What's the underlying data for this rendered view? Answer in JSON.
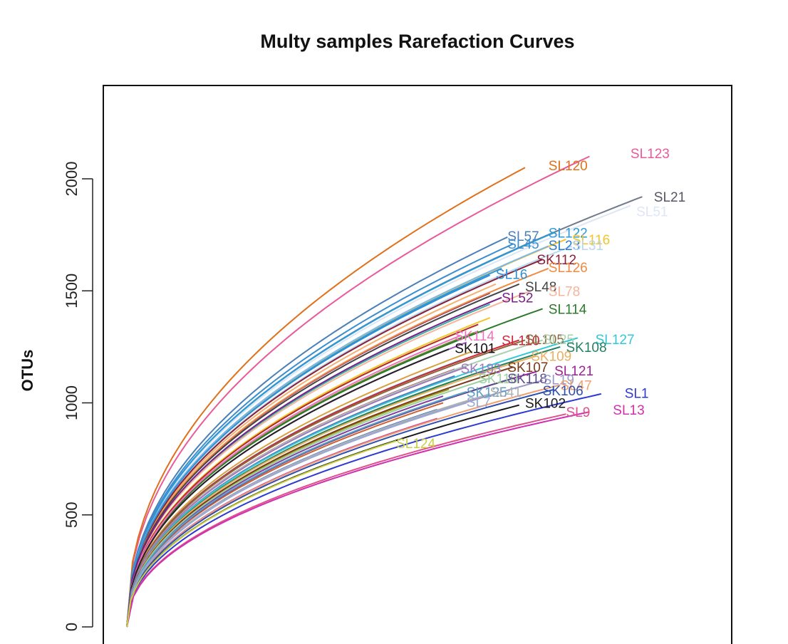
{
  "chart_data": {
    "type": "line",
    "title": "Multy samples Rarefaction Curves",
    "xlabel": "",
    "ylabel": "OTUs",
    "ylim": [
      0,
      2350
    ],
    "y_ticks": [
      0,
      500,
      1000,
      1500,
      2000
    ],
    "y_tick_labels": [
      "0",
      "500",
      "1000",
      "1500",
      "2000"
    ],
    "xlim": [
      0,
      100
    ],
    "grid": false,
    "legend": "inline labels at curve ends",
    "series": [
      {
        "name": "SL123",
        "color": "#e85a9a",
        "end": [
          79,
          2100
        ]
      },
      {
        "name": "SL120",
        "color": "#e0701a",
        "end": [
          68,
          2050
        ]
      },
      {
        "name": "SL21",
        "color": "#707a8c",
        "end": [
          88,
          1920
        ]
      },
      {
        "name": "SL51",
        "color": "#dde6f5",
        "end": [
          86,
          1880
        ]
      },
      {
        "name": "SL57",
        "color": "#4a7fb8",
        "end": [
          65,
          1740
        ]
      },
      {
        "name": "SL122",
        "color": "#2a9ad8",
        "end": [
          73,
          1760
        ]
      },
      {
        "name": "SL116",
        "color": "#f2c42a",
        "end": [
          75,
          1730
        ]
      },
      {
        "name": "SL45",
        "color": "#3a8ed0",
        "end": [
          66,
          1710
        ]
      },
      {
        "name": "SL23",
        "color": "#7ab6e8",
        "end": [
          72,
          1700
        ]
      },
      {
        "name": "SL31",
        "color": "#b8d8ee",
        "end": [
          76,
          1700
        ]
      },
      {
        "name": "SK112",
        "color": "#8b1f3a",
        "end": [
          71,
          1640
        ]
      },
      {
        "name": "SL126",
        "color": "#f08a40",
        "end": [
          72,
          1600
        ]
      },
      {
        "name": "SL16",
        "color": "#2f8fd6",
        "end": [
          62,
          1570
        ]
      },
      {
        "name": "SL48",
        "color": "#444444",
        "end": [
          67,
          1530
        ]
      },
      {
        "name": "SL78",
        "color": "#f5b59a",
        "end": [
          69,
          1500
        ]
      },
      {
        "name": "SL52",
        "color": "#7a1f8a",
        "end": [
          64,
          1470
        ]
      },
      {
        "name": "SL114",
        "color": "#2a7a2a",
        "end": [
          71,
          1420
        ]
      },
      {
        "name": "SK114",
        "color": "#f070c0",
        "end": [
          57,
          1300
        ]
      },
      {
        "name": "SL110",
        "color": "#d0283a",
        "end": [
          67,
          1280
        ]
      },
      {
        "name": "SL105",
        "color": "#8a6a3a",
        "end": [
          68,
          1280
        ]
      },
      {
        "name": "SL25",
        "color": "#aad0b0",
        "end": [
          71,
          1280
        ]
      },
      {
        "name": "SL127",
        "color": "#30c8d8",
        "end": [
          77,
          1290
        ]
      },
      {
        "name": "SK101",
        "color": "#222222",
        "end": [
          55,
          1240
        ]
      },
      {
        "name": "SK108",
        "color": "#238060",
        "end": [
          74,
          1250
        ]
      },
      {
        "name": "SK109",
        "color": "#e8b060",
        "end": [
          70,
          1210
        ]
      },
      {
        "name": "SK183",
        "color": "#a078c0",
        "end": [
          58,
          1160
        ]
      },
      {
        "name": "SK107",
        "color": "#7a3a1a",
        "end": [
          66,
          1160
        ]
      },
      {
        "name": "SL121",
        "color": "#a0209a",
        "end": [
          70,
          1140
        ]
      },
      {
        "name": "SK110",
        "color": "#9ad0a0",
        "end": [
          62,
          1110
        ]
      },
      {
        "name": "SK118",
        "color": "#5a4a8a",
        "end": [
          66,
          1110
        ]
      },
      {
        "name": "SL19",
        "color": "#9a9ac8",
        "end": [
          71,
          1100
        ]
      },
      {
        "name": "SL47",
        "color": "#f0a070",
        "end": [
          74,
          1080
        ]
      },
      {
        "name": "SK125",
        "color": "#5aa0c8",
        "end": [
          58,
          1050
        ]
      },
      {
        "name": "SL41",
        "color": "#b0b0b0",
        "end": [
          62,
          1040
        ]
      },
      {
        "name": "SK106",
        "color": "#3050b0",
        "end": [
          73,
          1060
        ]
      },
      {
        "name": "SL1",
        "color": "#2c3ad0",
        "end": [
          81,
          1040
        ]
      },
      {
        "name": "SL7",
        "color": "#9aa8d8",
        "end": [
          58,
          1000
        ]
      },
      {
        "name": "SK102",
        "color": "#1a1a1a",
        "end": [
          67,
          990
        ]
      },
      {
        "name": "SL9",
        "color": "#e0508a",
        "end": [
          75,
          950
        ]
      },
      {
        "name": "SL13",
        "color": "#d030b0",
        "end": [
          79,
          960
        ]
      },
      {
        "name": "SL124",
        "color": "#c8d040",
        "end": [
          46,
          830
        ]
      }
    ],
    "label_text": [
      {
        "text": "SL123",
        "color": "#e85a9a",
        "at": [
          86,
          2115
        ]
      },
      {
        "text": "SL120",
        "color": "#e0701a",
        "at": [
          72,
          2060
        ]
      },
      {
        "text": "SL21",
        "color": "#555566",
        "at": [
          90,
          1920
        ]
      },
      {
        "text": "SL51",
        "color": "#dde6f5",
        "at": [
          87,
          1855
        ]
      },
      {
        "text": "SL57",
        "color": "#4a7fb8",
        "at": [
          65,
          1745
        ]
      },
      {
        "text": "SL122",
        "color": "#2a9ad8",
        "at": [
          72,
          1760
        ]
      },
      {
        "text": "SL116",
        "color": "#f2c42a",
        "at": [
          76,
          1730
        ]
      },
      {
        "text": "SL45",
        "color": "#3a8ed0",
        "at": [
          65,
          1710
        ]
      },
      {
        "text": "SL23",
        "color": "#2a7ad0",
        "at": [
          72,
          1705
        ]
      },
      {
        "text": "SL31",
        "color": "#b8d8ee",
        "at": [
          76,
          1705
        ]
      },
      {
        "text": "SK112",
        "color": "#8b1f3a",
        "at": [
          70,
          1640
        ]
      },
      {
        "text": "SL126",
        "color": "#f08a40",
        "at": [
          72,
          1605
        ]
      },
      {
        "text": "SL16",
        "color": "#2f8fd6",
        "at": [
          63,
          1575
        ]
      },
      {
        "text": "SL48",
        "color": "#444444",
        "at": [
          68,
          1520
        ]
      },
      {
        "text": "SL78",
        "color": "#f5b59a",
        "at": [
          72,
          1500
        ]
      },
      {
        "text": "SL52",
        "color": "#7a1f8a",
        "at": [
          64,
          1470
        ]
      },
      {
        "text": "SL114",
        "color": "#2a7a2a",
        "at": [
          72,
          1420
        ]
      },
      {
        "text": "SK114",
        "color": "#f070c0",
        "at": [
          56,
          1300
        ]
      },
      {
        "text": "SL110",
        "color": "#d0283a",
        "at": [
          64,
          1280
        ]
      },
      {
        "text": "SL105",
        "color": "#8a6a3a",
        "at": [
          68,
          1285
        ]
      },
      {
        "text": "SL25",
        "color": "#aad0b0",
        "at": [
          71,
          1285
        ]
      },
      {
        "text": "SL127",
        "color": "#30c8d8",
        "at": [
          80,
          1285
        ]
      },
      {
        "text": "SK101",
        "color": "#111111",
        "at": [
          56,
          1245
        ]
      },
      {
        "text": "SK108",
        "color": "#238060",
        "at": [
          75,
          1250
        ]
      },
      {
        "text": "SK109",
        "color": "#e8b060",
        "at": [
          69,
          1210
        ]
      },
      {
        "text": "SK183",
        "color": "#a078c0",
        "at": [
          57,
          1155
        ]
      },
      {
        "text": "SK107",
        "color": "#7a3a1a",
        "at": [
          65,
          1160
        ]
      },
      {
        "text": "SL121",
        "color": "#a0209a",
        "at": [
          73,
          1145
        ]
      },
      {
        "text": "SK110",
        "color": "#9ad0a0",
        "at": [
          60,
          1110
        ]
      },
      {
        "text": "SK118",
        "color": "#5a4a8a",
        "at": [
          65,
          1110
        ]
      },
      {
        "text": "SL19",
        "color": "#9a9ac8",
        "at": [
          71,
          1105
        ]
      },
      {
        "text": "SL47",
        "color": "#f0a070",
        "at": [
          74,
          1080
        ]
      },
      {
        "text": "SK125",
        "color": "#5aa0c8",
        "at": [
          58,
          1050
        ]
      },
      {
        "text": "SL41",
        "color": "#b0b0b0",
        "at": [
          62,
          1050
        ]
      },
      {
        "text": "SK106",
        "color": "#3050b0",
        "at": [
          71,
          1055
        ]
      },
      {
        "text": "SL1",
        "color": "#2c3ad0",
        "at": [
          85,
          1045
        ]
      },
      {
        "text": "SL7",
        "color": "#9aa8d8",
        "at": [
          58,
          1005
        ]
      },
      {
        "text": "SK102",
        "color": "#1a1a1a",
        "at": [
          68,
          1000
        ]
      },
      {
        "text": "SL13",
        "color": "#d030b0",
        "at": [
          83,
          970
        ]
      },
      {
        "text": "SL9",
        "color": "#e0508a",
        "at": [
          75,
          960
        ]
      },
      {
        "text": "SL124",
        "color": "#c8d040",
        "at": [
          46,
          820
        ]
      }
    ],
    "unlabeled_series": [
      {
        "color": "#3a8ed0",
        "end": [
          66,
          1680
        ]
      },
      {
        "color": "#e0508a",
        "end": [
          65,
          1620
        ]
      },
      {
        "color": "#2a9ad8",
        "end": [
          64,
          1600
        ]
      },
      {
        "color": "#f5b070",
        "end": [
          63,
          1530
        ]
      },
      {
        "color": "#8a2a6a",
        "end": [
          62,
          1490
        ]
      },
      {
        "color": "#3ab0a0",
        "end": [
          62,
          1440
        ]
      },
      {
        "color": "#f2c42a",
        "end": [
          62,
          1380
        ]
      },
      {
        "color": "#b02a2a",
        "end": [
          60,
          1350
        ]
      },
      {
        "color": "#6a8a2a",
        "end": [
          60,
          1320
        ]
      },
      {
        "color": "#a050c0",
        "end": [
          58,
          1270
        ]
      },
      {
        "color": "#d8a040",
        "end": [
          59,
          1230
        ]
      },
      {
        "color": "#20a0c0",
        "end": [
          57,
          1190
        ]
      },
      {
        "color": "#c03070",
        "end": [
          56,
          1150
        ]
      },
      {
        "color": "#6070b0",
        "end": [
          56,
          1120
        ]
      },
      {
        "color": "#50b050",
        "end": [
          55,
          1090
        ]
      },
      {
        "color": "#a0a020",
        "end": [
          55,
          1060
        ]
      },
      {
        "color": "#8040a0",
        "end": [
          54,
          1030
        ]
      },
      {
        "color": "#d06030",
        "end": [
          54,
          1000
        ]
      },
      {
        "color": "#3070d0",
        "end": [
          53,
          970
        ]
      },
      {
        "color": "#c040a0",
        "end": [
          53,
          930
        ]
      }
    ]
  }
}
